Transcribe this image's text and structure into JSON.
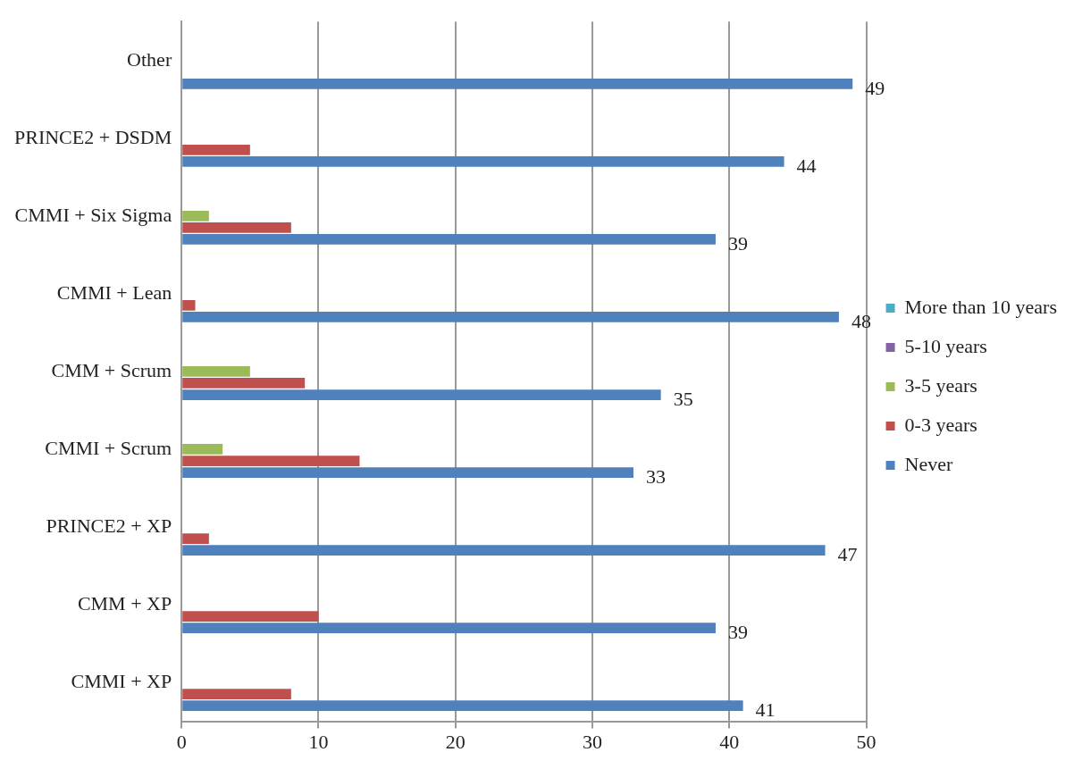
{
  "chart_data": {
    "type": "bar",
    "orientation": "horizontal",
    "categories": [
      "Other",
      "PRINCE2 + DSDM",
      "CMMI + Six Sigma",
      "CMMI + Lean",
      "CMM + Scrum",
      "CMMI + Scrum",
      "PRINCE2 + XP",
      "CMM + XP",
      "CMMI + XP"
    ],
    "series": [
      {
        "name": "More than 10 years",
        "color": "#4bacc6",
        "values": [
          0,
          0,
          0,
          0,
          0,
          0,
          0,
          0,
          0
        ]
      },
      {
        "name": "5-10 years",
        "color": "#8064a2",
        "values": [
          0,
          0,
          0,
          0,
          0,
          0,
          0,
          0,
          0
        ]
      },
      {
        "name": "3-5 years",
        "color": "#9bbb59",
        "values": [
          0,
          0,
          2,
          0,
          5,
          3,
          0,
          0,
          0
        ]
      },
      {
        "name": "0-3 years",
        "color": "#c0504d",
        "values": [
          0,
          5,
          8,
          1,
          9,
          13,
          2,
          10,
          8
        ]
      },
      {
        "name": "Never",
        "color": "#4f81bd",
        "values": [
          49,
          44,
          39,
          48,
          35,
          33,
          47,
          39,
          41
        ],
        "value_labels": [
          "49",
          "44",
          "39",
          "48",
          "35",
          "33",
          "47",
          "39",
          "41"
        ]
      }
    ],
    "xlim": [
      0,
      50
    ],
    "xticks": [
      0,
      10,
      20,
      30,
      40,
      50
    ],
    "grid": "x",
    "legend": "right"
  }
}
